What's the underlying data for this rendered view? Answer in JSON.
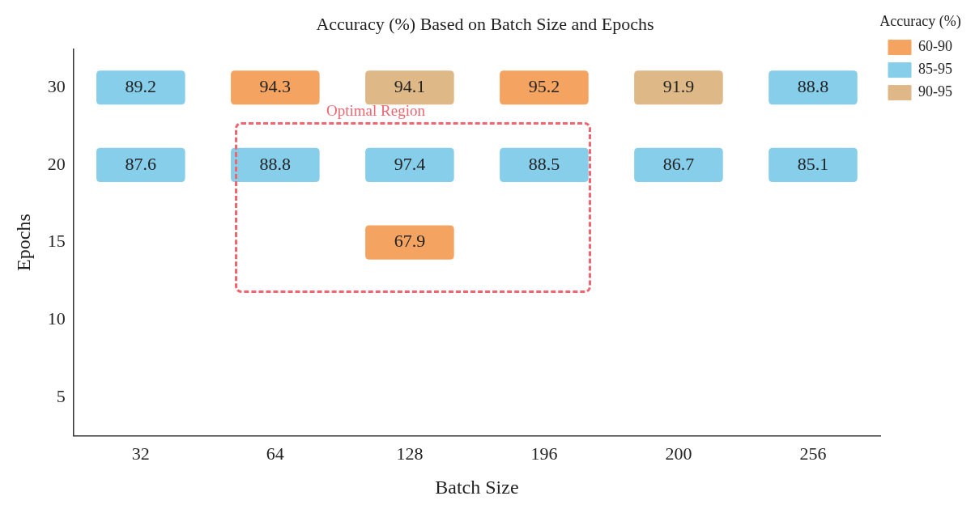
{
  "chart_data": {
    "type": "heatmap",
    "title": "Accuracy (%) Based on Batch Size and Epochs",
    "xlabel": "Batch Size",
    "ylabel": "Epochs",
    "legend_title": "Accuracy (%)",
    "legend": "top right",
    "grid": false,
    "data_labels": true,
    "categories": [
      "32",
      "64",
      "128",
      "196",
      "200",
      "256"
    ],
    "y_categories": [
      "30",
      "20",
      "15",
      "10",
      "5"
    ],
    "cells": [
      [
        89.2,
        94.3,
        94.1,
        95.2,
        91.9,
        88.8
      ],
      [
        87.6,
        88.8,
        97.4,
        88.5,
        86.7,
        85.1
      ],
      [
        null,
        null,
        67.9,
        null,
        null,
        null
      ],
      [
        null,
        null,
        null,
        null,
        null,
        null
      ],
      [
        null,
        null,
        null,
        null,
        null,
        null
      ]
    ],
    "colors": [
      [
        "#87ceeb",
        "#f4a460",
        "#deb887",
        "#f4a460",
        "#deb887",
        "#87ceeb"
      ],
      [
        "#87ceeb",
        "#87ceeb",
        "#87ceeb",
        "#87ceeb",
        "#87ceeb",
        "#87ceeb"
      ],
      [
        null,
        null,
        "#f4a460",
        null,
        null,
        null
      ],
      [
        null,
        null,
        null,
        null,
        null,
        null
      ],
      [
        null,
        null,
        null,
        null,
        null,
        null
      ]
    ],
    "series": [
      {
        "name": "60-90",
        "color": "#f4a460",
        "values": [
          null,
          null,
          null,
          null,
          null,
          null
        ]
      },
      {
        "name": "85-95",
        "color": "#87ceeb",
        "values": [
          null,
          null,
          null,
          null,
          null,
          null
        ]
      },
      {
        "name": "90-95",
        "color": "#deb887",
        "values": [
          null,
          null,
          null,
          null,
          null,
          null
        ]
      }
    ],
    "annotations": [
      "Optimal Region"
    ]
  }
}
